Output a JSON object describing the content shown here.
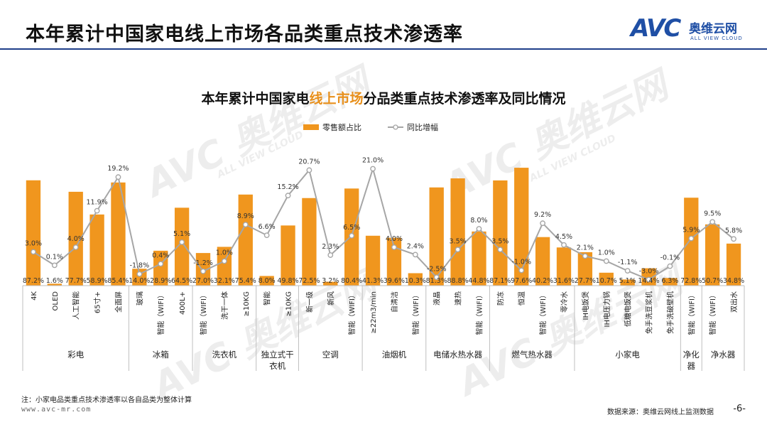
{
  "header": {
    "title": "本年累计中国家电线上市场各品类重点技术渗透率"
  },
  "logo": {
    "brand": "AVC",
    "name_cn": "奥维云网",
    "name_en": "ALL VIEW CLOUD"
  },
  "watermarks": [
    "AVC 奥维云网",
    "ALL VIEW CLOUD"
  ],
  "chart_title": {
    "prefix": "本年累计中国家电",
    "highlight": "线上市场",
    "suffix": "分品类重点技术渗透率及同比情况"
  },
  "colors": {
    "bar": "#f0961e",
    "line": "#a6a6a6",
    "highlight": "#e8901c",
    "rule": "#1f3f8a"
  },
  "chart_data": {
    "type": "bar+line",
    "legend": [
      "零售额占比",
      "同比增幅"
    ],
    "categories": [
      "4K",
      "OLED",
      "人工智能",
      "65寸+",
      "全面屏",
      "玻璃",
      "智能（WIFI）",
      "400L+",
      "智能（WIFI）",
      "洗干一体",
      "≥10KG",
      "智能",
      "≥10KG",
      "新一级",
      "新风",
      "智能（WIFI）",
      "≥22m3/min",
      "自清洁",
      "智能（WIFI）",
      "液晶",
      "速热",
      "智能（WIFI）",
      "防冻",
      "恒温",
      "智能（WIFI）",
      "零冷水",
      "IH电饭煲",
      "IH电压力锅",
      "低糖电饭煲",
      "免手洗豆浆机",
      "免手洗破壁机",
      "智能（WIFI）",
      "智能（WIFI）",
      "双出水"
    ],
    "series": [
      {
        "name": "零售额占比",
        "type": "bar",
        "unit": "%",
        "values": [
          87.2,
          1.6,
          77.7,
          58.9,
          85.4,
          14.0,
          28.9,
          64.5,
          27.0,
          32.1,
          75.4,
          8.0,
          49.8,
          72.5,
          3.2,
          80.4,
          41.3,
          39.6,
          10.3,
          81.3,
          88.8,
          44.8,
          87.1,
          97.6,
          40.2,
          31.6,
          27.7,
          10.7,
          5.1,
          14.4,
          6.3,
          72.8,
          50.7,
          34.8
        ],
        "labels": [
          "87.2%",
          "1.6%",
          "77.7%",
          "58.9%",
          "85.4%",
          "14.0%",
          "28.9%",
          "64.5%",
          "27.0%",
          "32.1%",
          "75.4%",
          "8.0%",
          "49.8%",
          "72.5%",
          "3.2%",
          "80.4%",
          "41.3%",
          "39.6%",
          "10.3%",
          "81.3%",
          "88.8%",
          "44.8%",
          "87.1%",
          "97.6%",
          "40.2%",
          "31.6%",
          "27.7%",
          "10.7%",
          "5.1%",
          "14.4%",
          "6.3%",
          "72.8%",
          "50.7%",
          "34.8%"
        ]
      },
      {
        "name": "同比增幅",
        "type": "line",
        "unit": "%",
        "values": [
          3.0,
          0.1,
          4.0,
          11.9,
          19.2,
          -1.8,
          0.4,
          5.1,
          -1.2,
          1.0,
          8.9,
          6.6,
          15.2,
          20.7,
          2.3,
          6.5,
          21.0,
          4.0,
          2.4,
          -2.5,
          3.5,
          8.0,
          3.5,
          -1.0,
          9.2,
          4.5,
          2.1,
          1.0,
          -1.1,
          -3.0,
          -0.1,
          5.9,
          9.5,
          5.8
        ],
        "labels": [
          "3.0%",
          "0.1%",
          "4.0%",
          "11.9%",
          "19.2%",
          "-1.8%",
          "0.4%",
          "5.1%",
          "-1.2%",
          "1.0%",
          "8.9%",
          "6.6%",
          "15.2%",
          "20.7%",
          "2.3%",
          "6.5%",
          "21.0%",
          "4.0%",
          "2.4%",
          "-2.5%",
          "3.5%",
          "8.0%",
          "3.5%",
          "-1.0%",
          "9.2%",
          "4.5%",
          "2.1%",
          "1.0%",
          "-1.1%",
          "-3.0%",
          "-0.1%",
          "5.9%",
          "9.5%",
          "5.8%"
        ]
      }
    ],
    "groups": [
      {
        "name": "彩电",
        "count": 5
      },
      {
        "name": "冰箱",
        "count": 3
      },
      {
        "name": "洗衣机",
        "count": 3
      },
      {
        "name": "独立式干衣机",
        "count": 2
      },
      {
        "name": "空调",
        "count": 3
      },
      {
        "name": "油烟机",
        "count": 3
      },
      {
        "name": "电储水热水器",
        "count": 3
      },
      {
        "name": "燃气热水器",
        "count": 4
      },
      {
        "name": "小家电",
        "count": 5
      },
      {
        "name": "净化器",
        "count": 1
      },
      {
        "name": "净水器",
        "count": 2
      }
    ],
    "bar_ylim": [
      0,
      100
    ],
    "line_ylim": [
      -4,
      24
    ]
  },
  "footer": {
    "note": "注：小家电品类重点技术渗透率以各自品类为整体计算",
    "website": "www.avc-mr.com",
    "source": "数据来源：奥维云网线上监测数据",
    "page": "-6-"
  }
}
